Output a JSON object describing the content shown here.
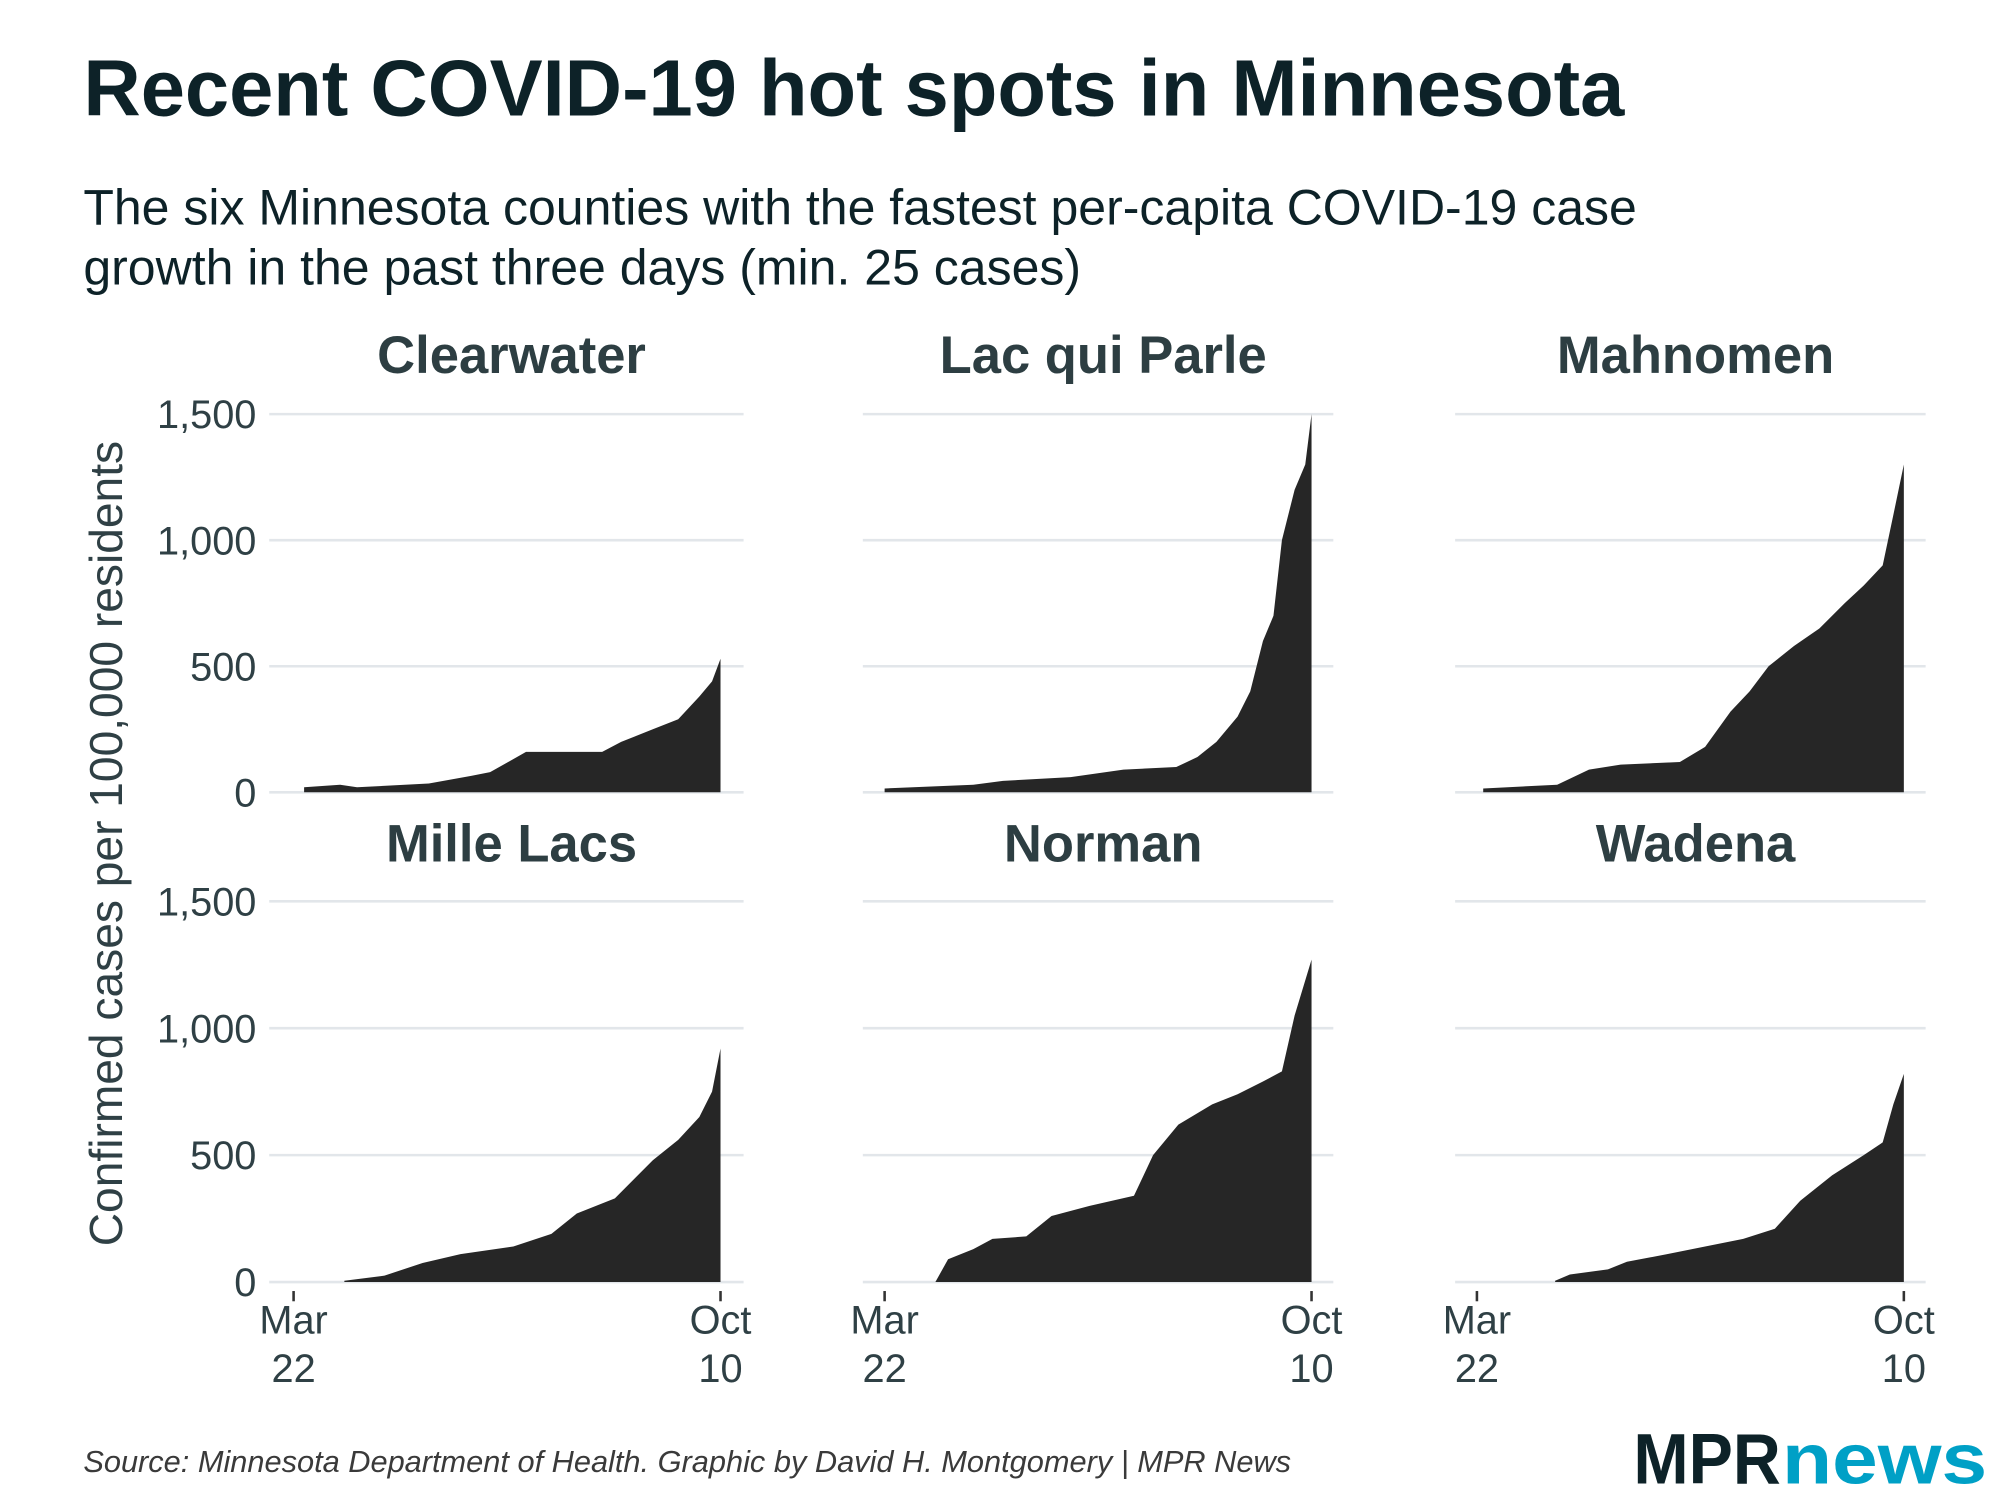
{
  "chart_data": {
    "type": "area",
    "title": "Recent COVID-19 hot spots in Minnesota",
    "subtitle_lines": [
      "The six Minnesota counties with the fastest per-capita COVID-19 case",
      "growth in the past three days (min. 25 cases)"
    ],
    "ylabel": "Confirmed cases per 100,000 residents",
    "xlabel": "",
    "ylim": [
      0,
      1500
    ],
    "yticks": [
      0,
      500,
      1000,
      1500
    ],
    "ytick_labels": [
      "0",
      "500",
      "1,000",
      "1,500"
    ],
    "xlim": [
      "Mar 22",
      "Oct 10"
    ],
    "xtick_labels": [
      [
        "Mar",
        "22"
      ],
      [
        "Oct",
        "10"
      ]
    ],
    "grid": true,
    "fill_color": "#262626",
    "panels": [
      {
        "name": "Clearwater",
        "points": [
          [
            "Mar 27",
            20
          ],
          [
            "Apr 13",
            30
          ],
          [
            "Apr 21",
            20
          ],
          [
            "May 25",
            35
          ],
          [
            "Jun 14",
            65
          ],
          [
            "Jun 23",
            80
          ],
          [
            "Jul 10",
            160
          ],
          [
            "Aug 15",
            160
          ],
          [
            "Aug 24",
            200
          ],
          [
            "Sep 8",
            250
          ],
          [
            "Sep 20",
            290
          ],
          [
            "Sep 30",
            380
          ],
          [
            "Oct 6",
            440
          ],
          [
            "Oct 10",
            530
          ]
        ]
      },
      {
        "name": "Lac qui Parle",
        "points": [
          [
            "Mar 22",
            15
          ],
          [
            "May 3",
            30
          ],
          [
            "May 17",
            45
          ],
          [
            "Jun 18",
            60
          ],
          [
            "Jul 13",
            90
          ],
          [
            "Aug 7",
            100
          ],
          [
            "Aug 17",
            140
          ],
          [
            "Aug 26",
            200
          ],
          [
            "Sep 5",
            300
          ],
          [
            "Sep 11",
            400
          ],
          [
            "Sep 17",
            600
          ],
          [
            "Sep 22",
            700
          ],
          [
            "Sep 26",
            1000
          ],
          [
            "Oct 2",
            1200
          ],
          [
            "Oct 7",
            1300
          ],
          [
            "Oct 10",
            1500
          ]
        ]
      },
      {
        "name": "Mahnomen",
        "points": [
          [
            "Mar 25",
            15
          ],
          [
            "Apr 29",
            30
          ],
          [
            "May 14",
            90
          ],
          [
            "May 29",
            110
          ],
          [
            "Jun 26",
            120
          ],
          [
            "Jul 8",
            180
          ],
          [
            "Jul 20",
            320
          ],
          [
            "Jul 29",
            400
          ],
          [
            "Aug 7",
            500
          ],
          [
            "Aug 19",
            580
          ],
          [
            "Aug 31",
            650
          ],
          [
            "Sep 12",
            750
          ],
          [
            "Sep 21",
            820
          ],
          [
            "Sep 30",
            900
          ],
          [
            "Oct 5",
            1100
          ],
          [
            "Oct 10",
            1300
          ]
        ]
      },
      {
        "name": "Mille Lacs",
        "points": [
          [
            "Apr 15",
            5
          ],
          [
            "May 4",
            25
          ],
          [
            "May 22",
            75
          ],
          [
            "Jun 9",
            110
          ],
          [
            "Jul 4",
            140
          ],
          [
            "Jul 22",
            190
          ],
          [
            "Aug 3",
            270
          ],
          [
            "Aug 21",
            330
          ],
          [
            "Sep 8",
            480
          ],
          [
            "Sep 20",
            560
          ],
          [
            "Sep 30",
            650
          ],
          [
            "Oct 6",
            750
          ],
          [
            "Oct 10",
            920
          ]
        ]
      },
      {
        "name": "Norman",
        "points": [
          [
            "Apr 15",
            0
          ],
          [
            "Apr 21",
            90
          ],
          [
            "May 3",
            130
          ],
          [
            "May 12",
            170
          ],
          [
            "May 28",
            180
          ],
          [
            "Jun 9",
            260
          ],
          [
            "Jun 27",
            300
          ],
          [
            "Jul 18",
            340
          ],
          [
            "Jul 27",
            500
          ],
          [
            "Aug 8",
            620
          ],
          [
            "Aug 24",
            700
          ],
          [
            "Sep 5",
            740
          ],
          [
            "Sep 17",
            790
          ],
          [
            "Sep 26",
            830
          ],
          [
            "Oct 2",
            1050
          ],
          [
            "Oct 10",
            1270
          ]
        ]
      },
      {
        "name": "Wadena",
        "points": [
          [
            "Apr 28",
            5
          ],
          [
            "May 5",
            30
          ],
          [
            "May 23",
            50
          ],
          [
            "Jun 1",
            80
          ],
          [
            "Jun 20",
            110
          ],
          [
            "Jul 8",
            140
          ],
          [
            "Jul 26",
            170
          ],
          [
            "Aug 10",
            210
          ],
          [
            "Aug 22",
            320
          ],
          [
            "Sep 6",
            420
          ],
          [
            "Sep 21",
            500
          ],
          [
            "Sep 30",
            550
          ],
          [
            "Oct 5",
            700
          ],
          [
            "Oct 10",
            820
          ]
        ]
      }
    ]
  },
  "footer": {
    "source": "Source: Minnesota Department of Health. Graphic by David H. Montgomery | MPR News",
    "logo": {
      "part1": "MPR",
      "part2": "news",
      "color1": "#0d2228",
      "color2": "#00a0c6"
    }
  }
}
